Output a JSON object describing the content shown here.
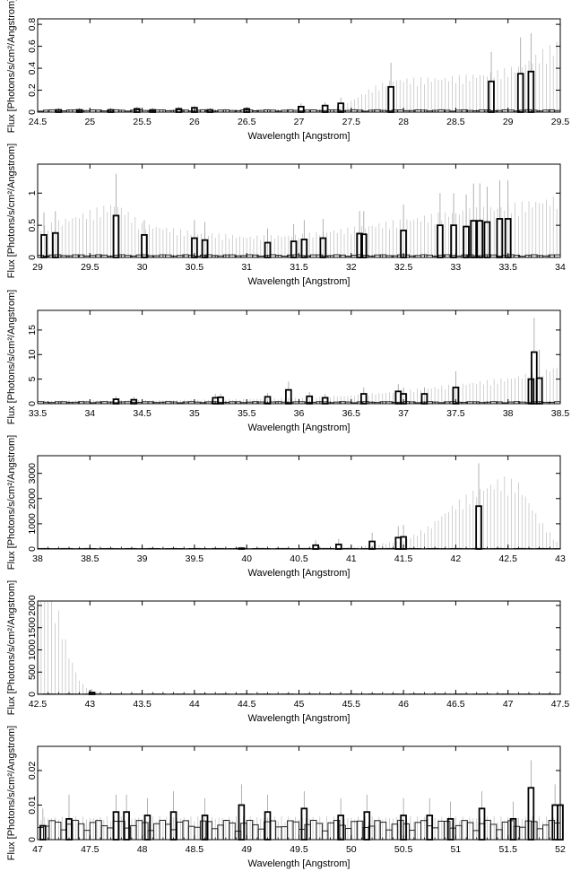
{
  "chart_data": [
    {
      "type": "histogram",
      "xlabel": "Wavelength [Angstrom]",
      "ylabel": "Flux [Photons/s/cm²/Angstrom]",
      "xlim": [
        24.5,
        29.5
      ],
      "ylim": [
        0,
        0.85
      ],
      "xticks": [
        "24.5",
        "25",
        "25.5",
        "26",
        "26.5",
        "27",
        "27.5",
        "28",
        "28.5",
        "29",
        "29.5"
      ],
      "yticks": [
        "0",
        "0.2",
        "0.4",
        "0.6",
        "0.8"
      ],
      "noise_level": 0.015,
      "model": [
        [
          24.5,
          0.01
        ],
        [
          27.3,
          0.02
        ],
        [
          27.5,
          0.08
        ],
        [
          27.7,
          0.17
        ],
        [
          27.9,
          0.23
        ],
        [
          28.4,
          0.24
        ],
        [
          28.8,
          0.27
        ],
        [
          29.1,
          0.32
        ],
        [
          29.5,
          0.5
        ]
      ],
      "data_bins": [
        [
          24.7,
          0.02
        ],
        [
          24.9,
          0.02
        ],
        [
          25.2,
          0.02
        ],
        [
          25.45,
          0.03
        ],
        [
          25.6,
          0.02
        ],
        [
          25.85,
          0.03
        ],
        [
          26.0,
          0.04
        ],
        [
          26.15,
          0.02
        ],
        [
          26.5,
          0.03
        ],
        [
          27.02,
          0.05
        ],
        [
          27.25,
          0.06
        ],
        [
          27.4,
          0.08
        ],
        [
          27.88,
          0.23
        ],
        [
          28.84,
          0.28
        ],
        [
          29.12,
          0.35
        ],
        [
          29.22,
          0.37
        ]
      ],
      "error_upper": [
        0.04,
        0.04,
        0.04,
        0.05,
        0.04,
        0.05,
        0.06,
        0.04,
        0.05,
        0.08,
        0.09,
        0.13,
        0.45,
        0.55,
        0.68,
        0.72
      ]
    },
    {
      "type": "histogram",
      "xlabel": "Wavelength [Angstrom]",
      "ylabel": "Flux [Photons/s/cm²/Angstrom]",
      "xlim": [
        29,
        34
      ],
      "ylim": [
        0,
        1.45
      ],
      "xticks": [
        "29",
        "29.5",
        "30",
        "30.5",
        "31",
        "31.5",
        "32",
        "32.5",
        "33",
        "33.5",
        "34"
      ],
      "yticks": [
        "0",
        "0.5",
        "1"
      ],
      "noise_level": 0.03,
      "model": [
        [
          29.0,
          0.35
        ],
        [
          29.5,
          0.55
        ],
        [
          29.75,
          0.65
        ],
        [
          30.0,
          0.4
        ],
        [
          30.5,
          0.3
        ],
        [
          31.0,
          0.25
        ],
        [
          31.5,
          0.27
        ],
        [
          32.0,
          0.35
        ],
        [
          32.5,
          0.45
        ],
        [
          33.0,
          0.55
        ],
        [
          33.5,
          0.62
        ],
        [
          34.0,
          0.72
        ]
      ],
      "data_bins": [
        [
          29.06,
          0.35
        ],
        [
          29.17,
          0.38
        ],
        [
          29.75,
          0.65
        ],
        [
          30.02,
          0.35
        ],
        [
          30.5,
          0.3
        ],
        [
          30.6,
          0.27
        ],
        [
          31.2,
          0.23
        ],
        [
          31.45,
          0.25
        ],
        [
          31.55,
          0.28
        ],
        [
          31.73,
          0.3
        ],
        [
          32.08,
          0.37
        ],
        [
          32.12,
          0.36
        ],
        [
          32.5,
          0.42
        ],
        [
          32.85,
          0.5
        ],
        [
          32.98,
          0.5
        ],
        [
          33.1,
          0.48
        ],
        [
          33.17,
          0.57
        ],
        [
          33.23,
          0.57
        ],
        [
          33.3,
          0.55
        ],
        [
          33.42,
          0.6
        ],
        [
          33.5,
          0.6
        ]
      ],
      "error_upper": [
        0.7,
        0.72,
        1.3,
        0.58,
        0.58,
        0.55,
        0.45,
        0.52,
        0.58,
        0.6,
        0.72,
        0.72,
        0.82,
        1.0,
        1.0,
        0.98,
        1.15,
        1.15,
        1.1,
        1.2,
        1.2
      ]
    },
    {
      "type": "histogram",
      "xlabel": "Wavelength [Angstrom]",
      "ylabel": "Flux [Photons/s/cm²/Angstrom]",
      "xlim": [
        33.5,
        38.5
      ],
      "ylim": [
        0,
        19
      ],
      "xticks": [
        "33.5",
        "34",
        "34.5",
        "35",
        "35.5",
        "36",
        "36.5",
        "37",
        "37.5",
        "38",
        "38.5"
      ],
      "yticks": [
        "0",
        "5",
        "10",
        "15"
      ],
      "noise_level": 0.3,
      "model": [
        [
          33.5,
          0.5
        ],
        [
          35.0,
          0.6
        ],
        [
          36.0,
          0.9
        ],
        [
          36.5,
          1.3
        ],
        [
          37.0,
          2.0
        ],
        [
          37.5,
          3.0
        ],
        [
          38.0,
          4.0
        ],
        [
          38.3,
          5.0
        ],
        [
          38.5,
          6.0
        ]
      ],
      "data_bins": [
        [
          34.25,
          0.9
        ],
        [
          34.42,
          0.8
        ],
        [
          35.2,
          1.2
        ],
        [
          35.25,
          1.3
        ],
        [
          35.7,
          1.4
        ],
        [
          35.9,
          2.8
        ],
        [
          36.1,
          1.5
        ],
        [
          36.25,
          1.2
        ],
        [
          36.62,
          2.0
        ],
        [
          36.95,
          2.5
        ],
        [
          37.0,
          2.0
        ],
        [
          37.2,
          2.0
        ],
        [
          37.5,
          3.3
        ],
        [
          38.22,
          5.0
        ],
        [
          38.25,
          10.5
        ],
        [
          38.3,
          5.2
        ]
      ],
      "error_upper": [
        1.5,
        1.4,
        2.0,
        2.0,
        2.2,
        4.5,
        2.4,
        2.0,
        3.3,
        4.0,
        3.3,
        3.3,
        6.6,
        9.0,
        17.5,
        11.0
      ]
    },
    {
      "type": "histogram",
      "xlabel": "Wavelength [Angstrom]",
      "ylabel": "Flux [Photons/s/cm²/Angstrom]",
      "xlim": [
        38,
        43
      ],
      "ylim": [
        0,
        3700
      ],
      "xticks": [
        "38",
        "38.5",
        "39",
        "39.5",
        "40",
        "40.5",
        "41",
        "41.5",
        "42",
        "42.5",
        "43"
      ],
      "yticks": [
        "0",
        "1000",
        "2000",
        "3000"
      ],
      "noise_level": 15,
      "model": [
        [
          38.0,
          5
        ],
        [
          40.5,
          10
        ],
        [
          41.0,
          60
        ],
        [
          41.5,
          250
        ],
        [
          41.75,
          700
        ],
        [
          42.0,
          1400
        ],
        [
          42.2,
          1800
        ],
        [
          42.45,
          2150
        ],
        [
          42.6,
          2000
        ],
        [
          42.8,
          900
        ],
        [
          43.0,
          80
        ]
      ],
      "data_bins": [
        [
          39.95,
          30
        ],
        [
          40.66,
          150
        ],
        [
          40.88,
          180
        ],
        [
          41.2,
          300
        ],
        [
          41.45,
          450
        ],
        [
          41.5,
          480
        ],
        [
          42.22,
          1700
        ]
      ],
      "error_upper": [
        80,
        350,
        400,
        650,
        900,
        950,
        3400
      ]
    },
    {
      "type": "histogram",
      "xlabel": "Wavelength [Angstrom]",
      "ylabel": "Flux [Photons/s/cm²/Angstrom]",
      "xlim": [
        42.5,
        47.5
      ],
      "ylim": [
        0,
        2100
      ],
      "xticks": [
        "42.5",
        "43",
        "43.5",
        "44",
        "44.5",
        "45",
        "45.5",
        "46",
        "46.5",
        "47",
        "47.5"
      ],
      "yticks": [
        "0",
        "500",
        "1000",
        "1500",
        "2000"
      ],
      "noise_level": 5,
      "model": [
        [
          42.5,
          2050
        ],
        [
          42.6,
          1900
        ],
        [
          42.7,
          1400
        ],
        [
          42.8,
          700
        ],
        [
          42.9,
          250
        ],
        [
          43.0,
          60
        ],
        [
          43.2,
          5
        ],
        [
          47.5,
          0
        ]
      ],
      "data_bins": [
        [
          43.02,
          40
        ]
      ],
      "error_upper": [
        120
      ]
    },
    {
      "type": "histogram",
      "xlabel": "Wavelength [Angstrom]",
      "ylabel": "Flux [Photons/s/cm²/Angstrom]",
      "xlim": [
        47,
        52
      ],
      "ylim": [
        0,
        0.027
      ],
      "xticks": [
        "47",
        "47.5",
        "48",
        "48.5",
        "49",
        "49.5",
        "50",
        "50.5",
        "51",
        "51.5",
        "52"
      ],
      "yticks": [
        "0",
        "0.01",
        "0.02"
      ],
      "noise_level": 0.004,
      "model": [
        [
          47,
          0.005
        ],
        [
          52,
          0.005
        ]
      ],
      "data_bins": [
        [
          47.05,
          0.004
        ],
        [
          47.3,
          0.006
        ],
        [
          47.75,
          0.008
        ],
        [
          47.85,
          0.008
        ],
        [
          48.05,
          0.007
        ],
        [
          48.3,
          0.008
        ],
        [
          48.6,
          0.007
        ],
        [
          48.95,
          0.01
        ],
        [
          49.2,
          0.008
        ],
        [
          49.55,
          0.009
        ],
        [
          49.9,
          0.007
        ],
        [
          50.15,
          0.008
        ],
        [
          50.5,
          0.007
        ],
        [
          50.75,
          0.007
        ],
        [
          50.95,
          0.006
        ],
        [
          51.25,
          0.009
        ],
        [
          51.55,
          0.006
        ],
        [
          51.72,
          0.015
        ],
        [
          51.95,
          0.01
        ],
        [
          52.0,
          0.01
        ]
      ],
      "error_upper": [
        0.009,
        0.013,
        0.013,
        0.013,
        0.012,
        0.014,
        0.012,
        0.016,
        0.013,
        0.014,
        0.012,
        0.013,
        0.012,
        0.012,
        0.011,
        0.014,
        0.011,
        0.023,
        0.016,
        0.017
      ]
    }
  ]
}
